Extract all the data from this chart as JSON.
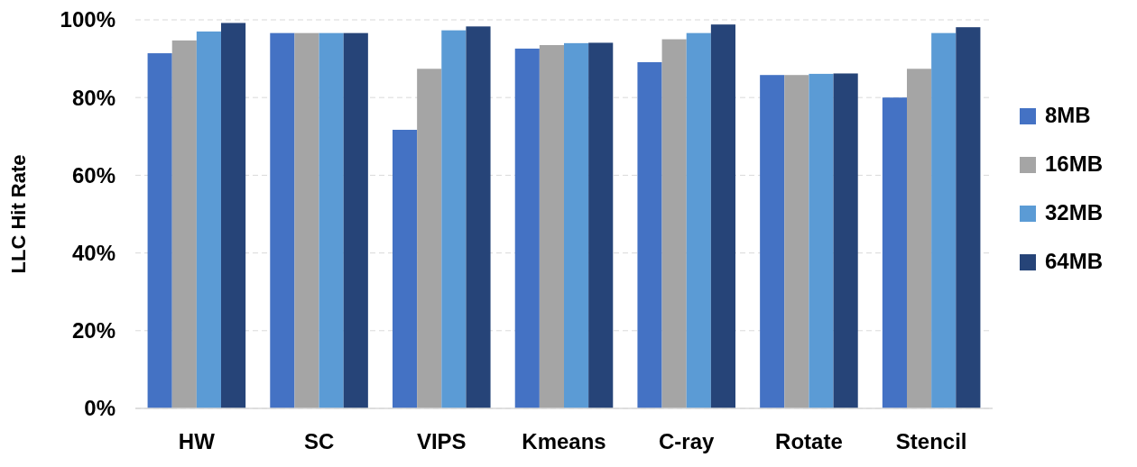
{
  "chart_data": {
    "type": "bar",
    "ylabel": "LLC Hit Rate",
    "categories": [
      "HW",
      "SC",
      "VIPS",
      "Kmeans",
      "C-ray",
      "Rotate",
      "Stencil"
    ],
    "series": [
      {
        "name": "8MB",
        "color": "#4472c4",
        "values": [
          91.4,
          96.6,
          71.7,
          92.6,
          89.1,
          85.8,
          80.0
        ]
      },
      {
        "name": "16MB",
        "color": "#a5a5a5",
        "values": [
          94.7,
          96.6,
          87.4,
          93.5,
          95.0,
          85.8,
          87.4
        ]
      },
      {
        "name": "32MB",
        "color": "#5b9bd5",
        "values": [
          97.0,
          96.6,
          97.3,
          94.0,
          96.6,
          86.1,
          96.6
        ]
      },
      {
        "name": "64MB",
        "color": "#264478",
        "values": [
          99.2,
          96.6,
          98.3,
          94.1,
          98.8,
          86.2,
          98.1
        ]
      }
    ],
    "ylim": [
      0,
      100
    ],
    "yticks": [
      {
        "value": 0,
        "label": "0%"
      },
      {
        "value": 20,
        "label": "20%"
      },
      {
        "value": 40,
        "label": "40%"
      },
      {
        "value": 60,
        "label": "60%"
      },
      {
        "value": 80,
        "label": "80%"
      },
      {
        "value": 100,
        "label": "100%"
      }
    ],
    "grid": "y",
    "legend": "right"
  }
}
